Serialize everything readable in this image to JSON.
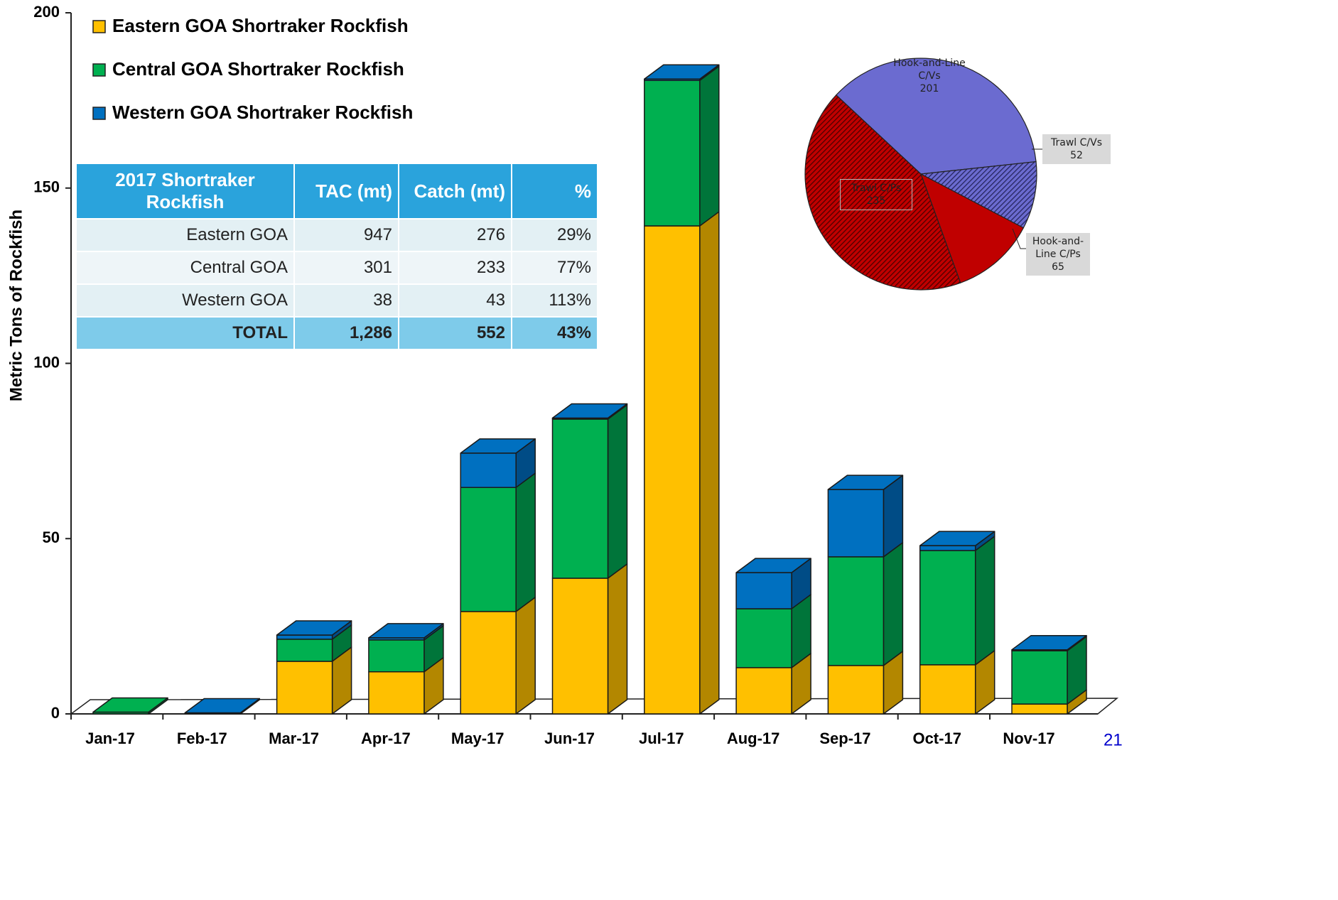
{
  "chart_data": [
    {
      "type": "bar",
      "stacked": true,
      "ylabel": "Metric Tons of Rockfish",
      "categories": [
        "Jan-17",
        "Feb-17",
        "Mar-17",
        "Apr-17",
        "May-17",
        "Jun-17",
        "Jul-17",
        "Aug-17",
        "Sep-17",
        "Oct-17",
        "Nov-17"
      ],
      "series": [
        {
          "name": "Eastern GOA Shortraker Rockfish",
          "color": "#ffc000",
          "side_color": "#b38700",
          "values": [
            0,
            0,
            15.0,
            12.0,
            29.2,
            38.7,
            139.2,
            13.2,
            13.8,
            14.0,
            2.8
          ]
        },
        {
          "name": "Central GOA Shortraker Rockfish",
          "color": "#00b050",
          "side_color": "#00753a",
          "values": [
            0.5,
            0,
            6.3,
            9.1,
            35.4,
            45.4,
            41.5,
            16.8,
            31.0,
            32.6,
            15.2
          ]
        },
        {
          "name": "Western GOA Shortraker Rockfish",
          "color": "#0070c0",
          "side_color": "#004c86",
          "values": [
            0,
            0.3,
            1.2,
            0.6,
            9.8,
            0.3,
            0.4,
            10.3,
            19.2,
            1.4,
            0.3
          ]
        }
      ],
      "ylim": [
        0,
        200
      ],
      "yticks": [
        0,
        50,
        100,
        150,
        200
      ],
      "legend": "top-left"
    },
    {
      "type": "pie",
      "categories": [
        "Hook-and-Line C/Vs",
        "Trawl C/Vs",
        "Hook-and-Line C/Ps",
        "Trawl C/Ps"
      ],
      "values": [
        201,
        52,
        65,
        235
      ],
      "colors": [
        "#6b6bd0",
        "#6b6bd0",
        "#c00000",
        "#c00000"
      ],
      "hatch": [
        false,
        true,
        false,
        true
      ]
    }
  ],
  "table": {
    "header": [
      "2017 Shortraker Rockfish",
      "TAC (mt)",
      "Catch (mt)",
      "%"
    ],
    "rows": [
      [
        "Eastern GOA",
        "947",
        "276",
        "29%"
      ],
      [
        "Central GOA",
        "301",
        "233",
        "77%"
      ],
      [
        "Western GOA",
        "38",
        "43",
        "113%"
      ],
      [
        "TOTAL",
        "1,286",
        "552",
        "43%"
      ]
    ]
  },
  "page_number": "21"
}
